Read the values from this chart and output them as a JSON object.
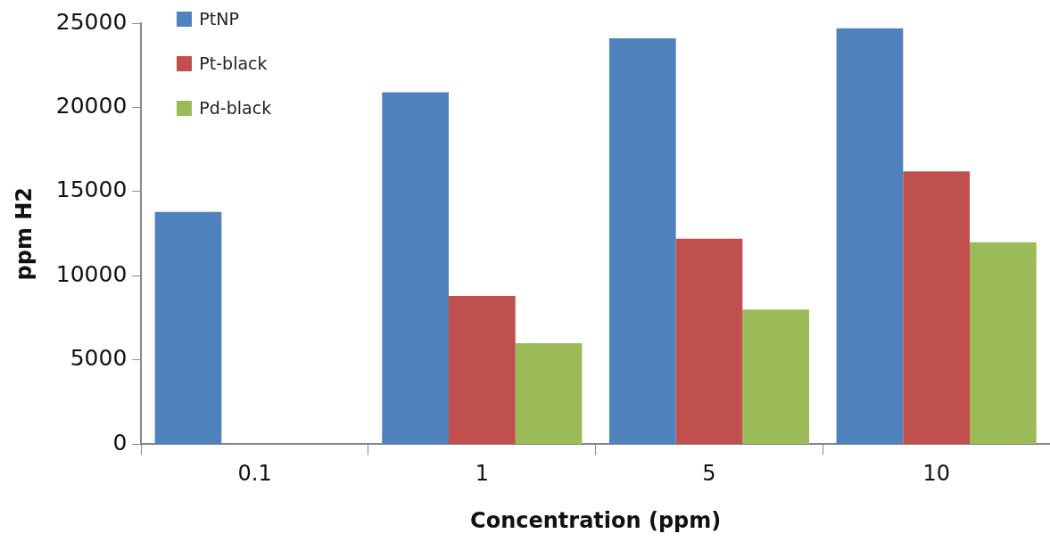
{
  "chart_data": {
    "type": "bar",
    "xlabel": "Concentration (ppm)",
    "ylabel": "ppm H2",
    "categories": [
      "0.1",
      "1",
      "5",
      "10"
    ],
    "series": [
      {
        "name": "PtNP",
        "color": "#4f81bd",
        "values": [
          13800,
          20900,
          24100,
          24700
        ]
      },
      {
        "name": "Pt-black",
        "color": "#c0504d",
        "values": [
          null,
          8800,
          12200,
          16200
        ]
      },
      {
        "name": "Pd-black",
        "color": "#9bbb59",
        "values": [
          null,
          6000,
          8000,
          12000
        ]
      }
    ],
    "ylim": [
      0,
      25000
    ],
    "yticks": [
      0,
      5000,
      10000,
      15000,
      20000,
      25000
    ],
    "grid": false,
    "legend": "top left"
  }
}
